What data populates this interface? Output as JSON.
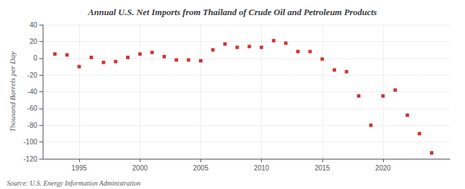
{
  "chart_data": {
    "type": "scatter",
    "title": "Annual U.S. Net Imports from Thailand of Crude Oil and Petroleum Products",
    "ylabel": "Thousand Barrels per Day",
    "source": "Source: U.S. Energy Information Administration",
    "x": [
      1993,
      1994,
      1995,
      1996,
      1997,
      1998,
      1999,
      2000,
      2001,
      2002,
      2003,
      2004,
      2005,
      2006,
      2007,
      2008,
      2009,
      2010,
      2011,
      2012,
      2013,
      2014,
      2015,
      2016,
      2017,
      2018,
      2019,
      2020,
      2021,
      2022,
      2023,
      2024
    ],
    "values": [
      5,
      4,
      -10,
      1,
      -5,
      -4,
      1,
      5,
      7,
      2,
      -2,
      -2,
      -3,
      10,
      17,
      13,
      14,
      13,
      21,
      18,
      8,
      8,
      -1,
      -14,
      -16,
      -45,
      -80,
      -45,
      -38,
      -68,
      -90,
      -113
    ],
    "color": "#cc0000",
    "marker": "square",
    "xlim": [
      1992.0,
      2025.5
    ],
    "xticks": [
      1995,
      2000,
      2005,
      2010,
      2015,
      2020
    ],
    "ylim": [
      -120,
      40
    ],
    "yticks": [
      -120,
      -100,
      -80,
      -60,
      -40,
      -20,
      0,
      20,
      40
    ],
    "grid": true
  }
}
